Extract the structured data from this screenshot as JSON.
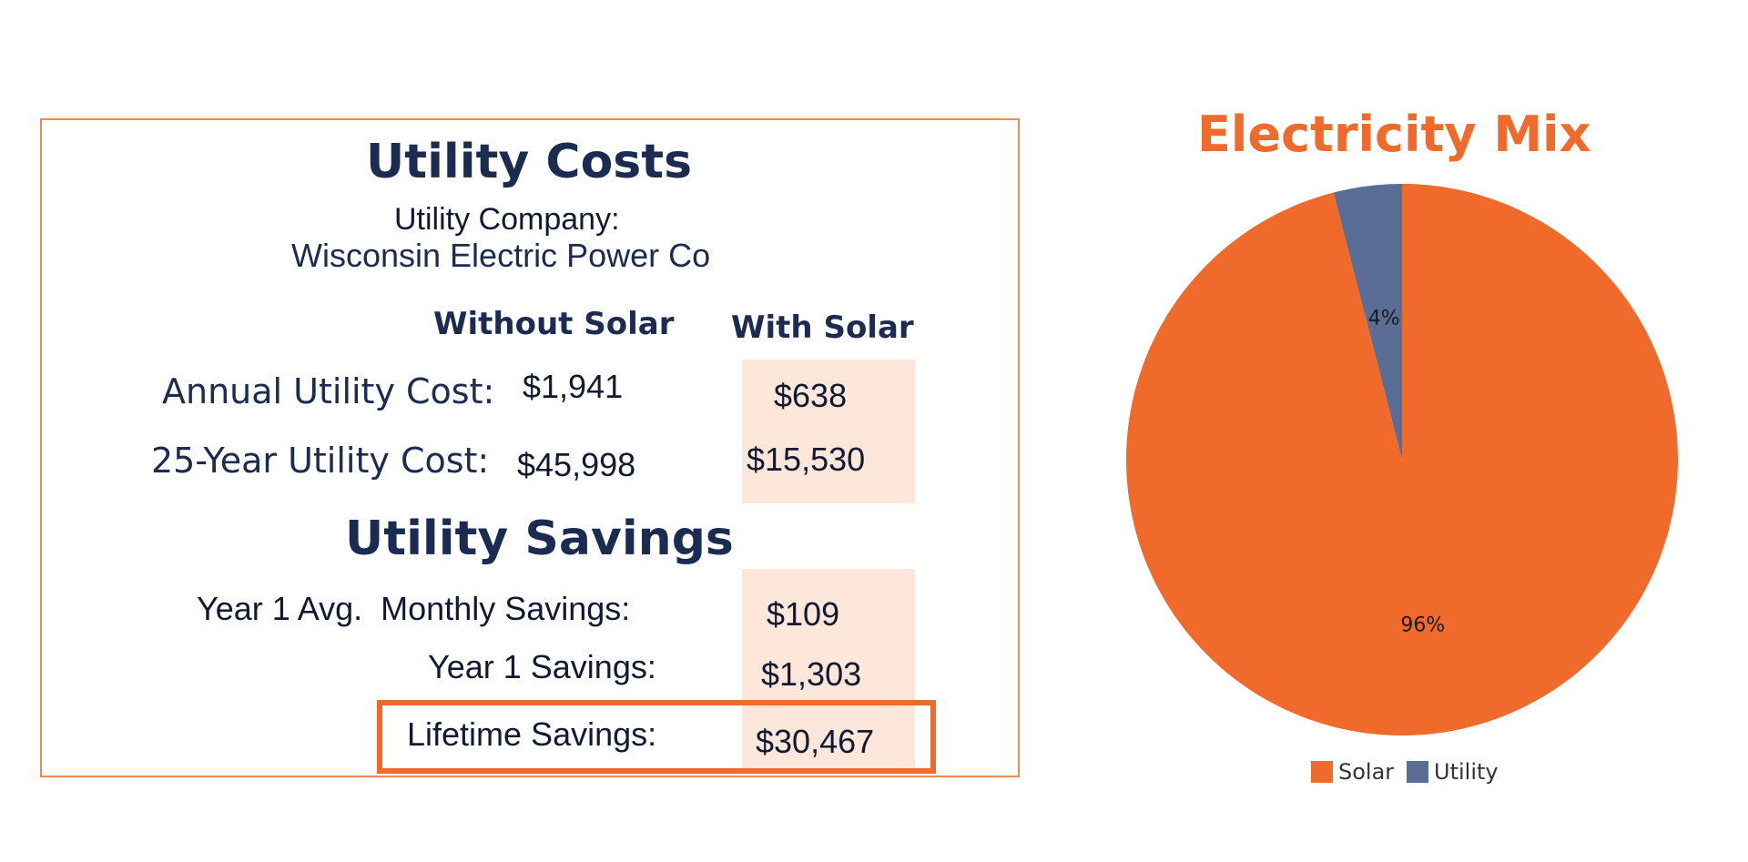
{
  "utility_costs": {
    "title": "Utility Costs",
    "company_label": "Utility Company:",
    "company_name": "Wisconsin Electric Power Co",
    "col_without": "Without Solar",
    "col_with": "With Solar",
    "rows": [
      {
        "label": "Annual Utility Cost:",
        "without": "$1,941",
        "with": "$638"
      },
      {
        "label": "25-Year Utility Cost:",
        "without": "$45,998",
        "with": "$15,530"
      }
    ]
  },
  "utility_savings": {
    "title": "Utility Savings",
    "rows": [
      {
        "label": "Year 1 Avg.  Monthly Savings:",
        "value": "$109"
      },
      {
        "label": "Year 1 Savings:",
        "value": "$1,303"
      },
      {
        "label": "Lifetime Savings:",
        "value": "$30,467"
      }
    ]
  },
  "colors": {
    "accent": "#ef6a2b",
    "navy": "#1b2b52",
    "shade": "#fde6da",
    "utility": "#5a6d94"
  },
  "chart_data": {
    "type": "pie",
    "title": "Electricity Mix",
    "slices": [
      {
        "name": "Solar",
        "value": 96,
        "label": "96%",
        "color": "#ef6a2b"
      },
      {
        "name": "Utility",
        "value": 4,
        "label": "4%",
        "color": "#5a6d94"
      }
    ],
    "legend_placement": "bottom"
  }
}
